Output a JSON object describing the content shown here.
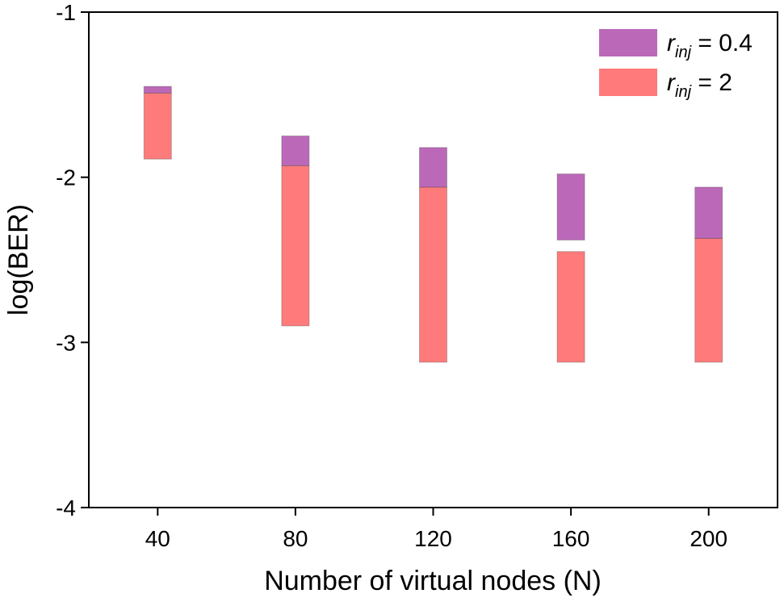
{
  "chart_data": {
    "type": "bar",
    "subtype": "floating-range",
    "title": "",
    "xlabel": "Number of virtual nodes (N)",
    "ylabel": "log(BER)",
    "categories": [
      "40",
      "80",
      "120",
      "160",
      "200"
    ],
    "x_values": [
      40,
      80,
      120,
      160,
      200
    ],
    "xlim": [
      20,
      220
    ],
    "ylim": [
      -4,
      -1
    ],
    "yticks": [
      "-1",
      "-2",
      "-3",
      "-4"
    ],
    "ytick_values": [
      -1,
      -2,
      -3,
      -4
    ],
    "grid": false,
    "legend_position": "top-right",
    "series": [
      {
        "color": "#b04ead",
        "legend": {
          "r": "r",
          "sub": "inj",
          "eq": " = 0.4"
        },
        "ranges": [
          {
            "low": -1.49,
            "high": -1.45
          },
          {
            "low": -1.93,
            "high": -1.75
          },
          {
            "low": -2.06,
            "high": -1.82
          },
          {
            "low": -2.38,
            "high": -1.98
          },
          {
            "low": -2.37,
            "high": -2.06
          }
        ]
      },
      {
        "color": "#ff6464",
        "legend": {
          "r": "r",
          "sub": "inj",
          "eq": " = 2"
        },
        "ranges": [
          {
            "low": -1.89,
            "high": -1.49
          },
          {
            "low": -2.9,
            "high": -1.93
          },
          {
            "low": -3.12,
            "high": -2.06
          },
          {
            "low": -3.12,
            "high": -2.45
          },
          {
            "low": -3.12,
            "high": -2.37
          }
        ]
      }
    ]
  }
}
